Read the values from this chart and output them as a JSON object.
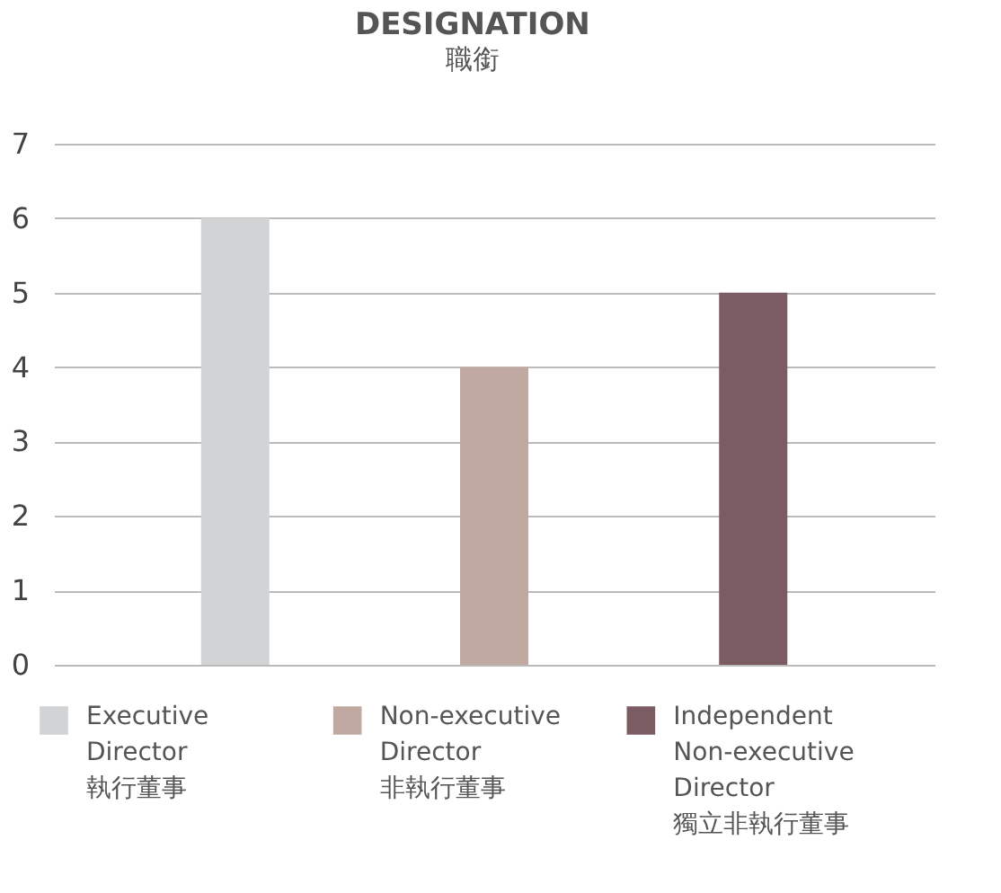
{
  "chart_data": {
    "type": "bar",
    "title": "DESIGNATION",
    "subtitle": "職銜",
    "categories": [
      null,
      null,
      null
    ],
    "series": [
      {
        "name": "Executive Director 執行董事",
        "color": "#d2d3d5",
        "values": [
          6,
          null,
          null
        ]
      },
      {
        "name": "Non-executive Director 非執行董事",
        "color": "#c0a9a1",
        "values": [
          null,
          4,
          null
        ]
      },
      {
        "name": "Independent Non-executive Director 獨立非執行董事",
        "color": "#7b5c62",
        "values": [
          null,
          null,
          5
        ]
      }
    ],
    "ylim": [
      0,
      7
    ],
    "yticks": [
      0,
      1,
      2,
      3,
      4,
      5,
      6,
      7
    ],
    "grid": "y",
    "legend": "bottom",
    "tick_labels": "y"
  }
}
